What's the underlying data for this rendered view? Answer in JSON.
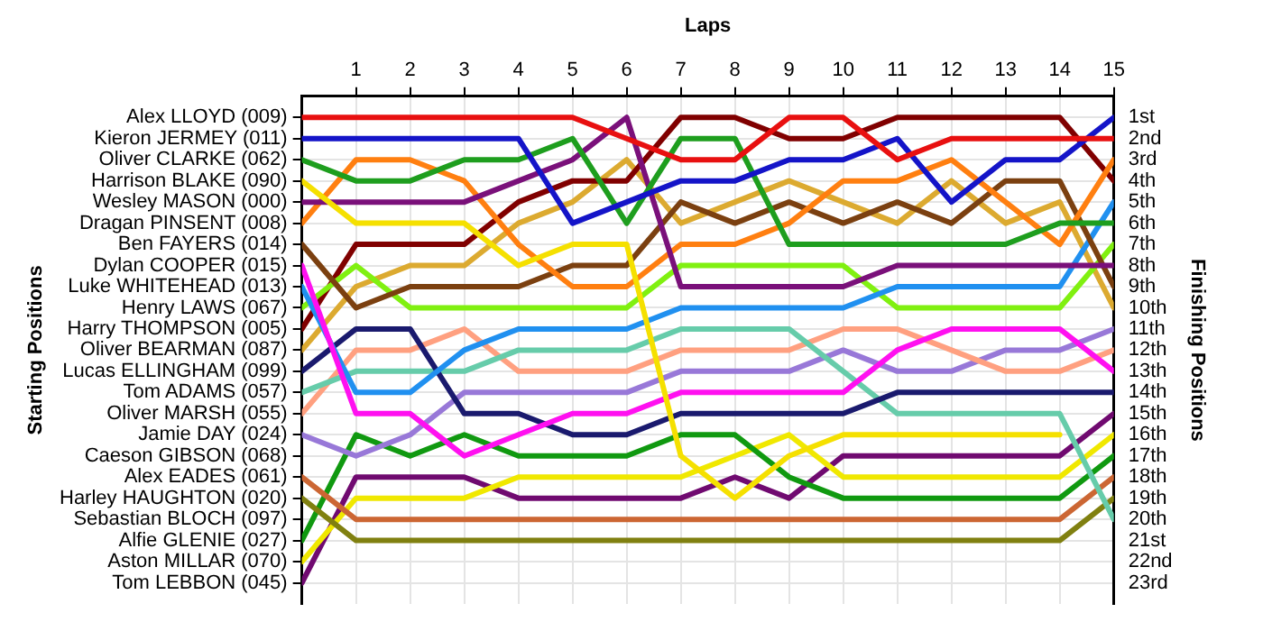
{
  "chart_data": {
    "type": "line",
    "xlabel": "Laps",
    "annotations": [
      "Starting Positions"
    ],
    "y2label": "Finishing Positions",
    "x": [
      0,
      1,
      2,
      3,
      4,
      5,
      6,
      7,
      8,
      9,
      10,
      11,
      12,
      13,
      14,
      15
    ],
    "xlim": [
      0,
      15
    ],
    "xticks": [
      1,
      2,
      3,
      4,
      5,
      6,
      7,
      8,
      9,
      10,
      11,
      12,
      13,
      14,
      15
    ],
    "y_categories": [
      "Alex LLOYD (009)",
      "Kieron JERMEY (011)",
      "Oliver CLARKE (062)",
      "Harrison BLAKE (090)",
      "Wesley MASON (000)",
      "Dragan PINSENT (008)",
      "Ben FAYERS (014)",
      "Dylan COOPER (015)",
      "Luke WHITEHEAD (013)",
      "Henry LAWS (067)",
      "Harry THOMPSON (005)",
      "Oliver BEARMAN (087)",
      "Lucas ELLINGHAM (099)",
      "Tom ADAMS (057)",
      "Oliver MARSH (055)",
      "Jamie DAY (024)",
      "Caeson GIBSON (068)",
      "Alex EADES (061)",
      "Harley HAUGHTON (020)",
      "Sebastian BLOCH (097)",
      "Alfie GLENIE (027)",
      "Aston MILLAR (070)",
      "Tom LEBBON (045)"
    ],
    "y2lim": [
      24,
      0
    ],
    "y2ticks": [
      {
        "value": 1,
        "label": "1st"
      },
      {
        "value": 2,
        "label": "2nd"
      },
      {
        "value": 3,
        "label": "3rd"
      },
      {
        "value": 4,
        "label": "4th"
      },
      {
        "value": 5,
        "label": "5th"
      },
      {
        "value": 6,
        "label": "6th"
      },
      {
        "value": 7,
        "label": "7th"
      },
      {
        "value": 8,
        "label": "8th"
      },
      {
        "value": 9,
        "label": "9th"
      },
      {
        "value": 10,
        "label": "10th"
      },
      {
        "value": 11,
        "label": "11th"
      },
      {
        "value": 12,
        "label": "12th"
      },
      {
        "value": 13,
        "label": "13th"
      },
      {
        "value": 14,
        "label": "14th"
      },
      {
        "value": 15,
        "label": "15th"
      },
      {
        "value": 16,
        "label": "16th"
      },
      {
        "value": 17,
        "label": "17th"
      },
      {
        "value": 18,
        "label": "18th"
      },
      {
        "value": 19,
        "label": "19th"
      },
      {
        "value": 20,
        "label": "20th"
      },
      {
        "value": 21,
        "label": "21st"
      },
      {
        "value": 22,
        "label": "22nd"
      },
      {
        "value": 23,
        "label": "23rd"
      }
    ],
    "grid": true,
    "series": [
      {
        "axis": "y2",
        "color": "#e81010",
        "values": [
          1,
          1,
          1,
          1,
          1,
          1,
          2,
          3,
          3,
          1,
          1,
          3,
          2,
          2,
          2,
          2
        ]
      },
      {
        "axis": "y2",
        "color": "#1414c8",
        "values": [
          2,
          2,
          2,
          2,
          2,
          6,
          5,
          4,
          4,
          3,
          3,
          2,
          5,
          3,
          3,
          1
        ]
      },
      {
        "axis": "y2",
        "color": "#1e9e1e",
        "values": [
          3,
          4,
          4,
          3,
          3,
          2,
          6,
          2,
          2,
          7,
          7,
          7,
          7,
          7,
          6,
          6
        ]
      },
      {
        "axis": "y2",
        "color": "#f5e000",
        "values": [
          4,
          6,
          6,
          6,
          8,
          7,
          7,
          17,
          19,
          17,
          16,
          16,
          16,
          16,
          16,
          null
        ]
      },
      {
        "axis": "y2",
        "color": "#7a107a",
        "values": [
          5,
          5,
          5,
          5,
          4,
          3,
          1,
          9,
          9,
          9,
          9,
          8,
          8,
          8,
          8,
          8
        ]
      },
      {
        "axis": "y2",
        "color": "#ff7f10",
        "values": [
          6,
          3,
          3,
          4,
          7,
          9,
          9,
          7,
          7,
          6,
          4,
          4,
          3,
          5,
          7,
          3
        ]
      },
      {
        "axis": "y2",
        "color": "#7b4010",
        "values": [
          7,
          10,
          9,
          9,
          9,
          8,
          8,
          5,
          6,
          5,
          6,
          5,
          6,
          4,
          4,
          9
        ]
      },
      {
        "axis": "y2",
        "color": "#ff10f0",
        "values": [
          8,
          15,
          15,
          17,
          16,
          15,
          15,
          14,
          14,
          14,
          14,
          12,
          11,
          11,
          11,
          13
        ]
      },
      {
        "axis": "y2",
        "color": "#2090f0",
        "values": [
          9,
          14,
          14,
          12,
          11,
          11,
          11,
          10,
          10,
          10,
          10,
          9,
          9,
          9,
          9,
          5
        ]
      },
      {
        "axis": "y2",
        "color": "#80f010",
        "values": [
          10,
          8,
          10,
          10,
          10,
          10,
          10,
          8,
          8,
          8,
          8,
          10,
          10,
          10,
          10,
          7
        ]
      },
      {
        "axis": "y2",
        "color": "#800000",
        "values": [
          11,
          7,
          7,
          7,
          5,
          4,
          4,
          1,
          1,
          2,
          2,
          1,
          1,
          1,
          1,
          4
        ]
      },
      {
        "axis": "y2",
        "color": "#dcaa30",
        "values": [
          12,
          9,
          8,
          8,
          6,
          5,
          3,
          6,
          5,
          4,
          5,
          6,
          4,
          6,
          5,
          10
        ]
      },
      {
        "axis": "y2",
        "color": "#1a1a6e",
        "values": [
          13,
          11,
          11,
          15,
          15,
          16,
          16,
          15,
          15,
          15,
          15,
          14,
          14,
          14,
          14,
          14
        ]
      },
      {
        "axis": "y2",
        "color": "#66ccaa",
        "values": [
          14,
          13,
          13,
          13,
          12,
          12,
          12,
          11,
          11,
          11,
          13,
          15,
          15,
          15,
          15,
          20
        ]
      },
      {
        "axis": "y2",
        "color": "#ffa080",
        "values": [
          15,
          12,
          12,
          11,
          13,
          13,
          13,
          12,
          12,
          12,
          11,
          11,
          12,
          13,
          13,
          12
        ]
      },
      {
        "axis": "y2",
        "color": "#9878d8",
        "values": [
          16,
          17,
          16,
          14,
          14,
          14,
          14,
          13,
          13,
          13,
          12,
          13,
          13,
          12,
          12,
          11
        ]
      },
      {
        "axis": "y2",
        "color": "#cc6633",
        "values": [
          18,
          20,
          20,
          20,
          20,
          20,
          20,
          20,
          20,
          20,
          20,
          20,
          20,
          20,
          20,
          18
        ]
      },
      {
        "axis": "y2",
        "color": "#808010",
        "values": [
          19,
          21,
          21,
          21,
          21,
          21,
          21,
          21,
          21,
          21,
          21,
          21,
          21,
          21,
          21,
          19
        ]
      },
      {
        "axis": "y2",
        "color": "#109910",
        "values": [
          21,
          16,
          17,
          16,
          17,
          17,
          17,
          16,
          16,
          18,
          19,
          19,
          19,
          19,
          19,
          17
        ]
      },
      {
        "axis": "y2",
        "color": "#f0e800",
        "values": [
          22,
          19,
          19,
          19,
          18,
          18,
          18,
          18,
          17,
          16,
          18,
          18,
          18,
          18,
          18,
          16
        ]
      },
      {
        "axis": "y2",
        "color": "#700a70",
        "values": [
          23,
          18,
          18,
          18,
          19,
          19,
          19,
          19,
          18,
          19,
          17,
          17,
          17,
          17,
          17,
          15
        ]
      }
    ]
  }
}
